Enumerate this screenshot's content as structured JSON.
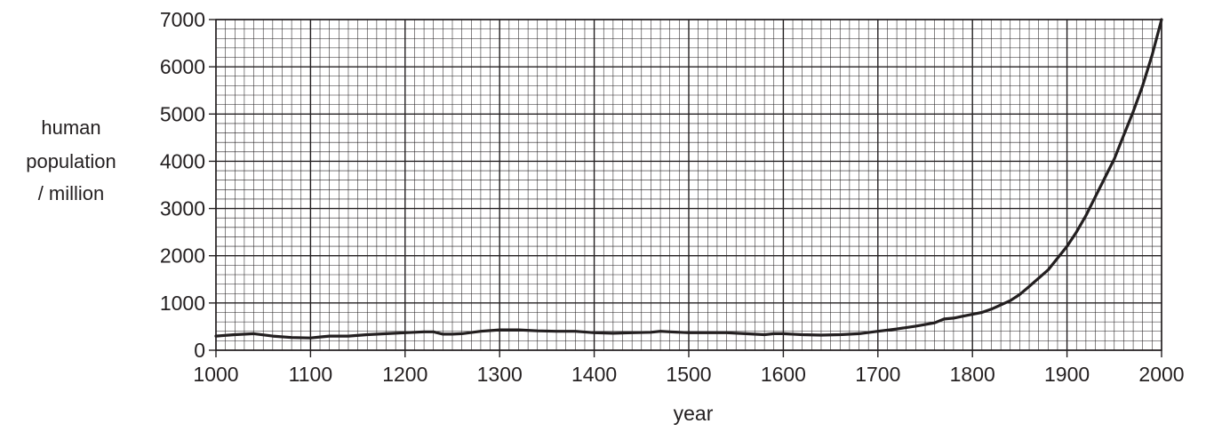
{
  "chart_data": {
    "type": "line",
    "title": "",
    "xlabel": "year",
    "ylabel_lines": [
      "human",
      "population",
      "/ million"
    ],
    "xlim": [
      1000,
      2000
    ],
    "ylim": [
      0,
      7000
    ],
    "x_ticks": [
      1000,
      1100,
      1200,
      1300,
      1400,
      1500,
      1600,
      1700,
      1800,
      1900,
      2000
    ],
    "y_ticks": [
      0,
      1000,
      2000,
      3000,
      4000,
      5000,
      6000,
      7000
    ],
    "grid": "fine graph-paper grid: major every 100 years / 1000 million, minor every 10 years / 200 million",
    "series": [
      {
        "color": "#231f20",
        "x": [
          1000,
          1020,
          1040,
          1060,
          1080,
          1100,
          1110,
          1120,
          1140,
          1160,
          1180,
          1200,
          1220,
          1230,
          1240,
          1250,
          1260,
          1280,
          1300,
          1320,
          1340,
          1360,
          1380,
          1400,
          1420,
          1440,
          1460,
          1470,
          1480,
          1500,
          1520,
          1540,
          1560,
          1580,
          1590,
          1600,
          1620,
          1640,
          1660,
          1680,
          1700,
          1720,
          1740,
          1760,
          1770,
          1780,
          1790,
          1800,
          1810,
          1820,
          1840,
          1850,
          1860,
          1880,
          1900,
          1910,
          1920,
          1930,
          1940,
          1950,
          1960,
          1970,
          1980,
          1990,
          2000
        ],
        "y": [
          300,
          330,
          350,
          300,
          270,
          260,
          280,
          300,
          300,
          330,
          350,
          370,
          390,
          390,
          340,
          340,
          350,
          400,
          430,
          430,
          410,
          400,
          400,
          370,
          360,
          370,
          380,
          400,
          390,
          370,
          370,
          370,
          350,
          330,
          350,
          350,
          330,
          320,
          330,
          350,
          400,
          450,
          510,
          580,
          660,
          680,
          720,
          760,
          800,
          870,
          1050,
          1180,
          1350,
          1700,
          2200,
          2500,
          2850,
          3250,
          3650,
          4050,
          4550,
          5050,
          5600,
          6250,
          7000
        ]
      }
    ]
  }
}
